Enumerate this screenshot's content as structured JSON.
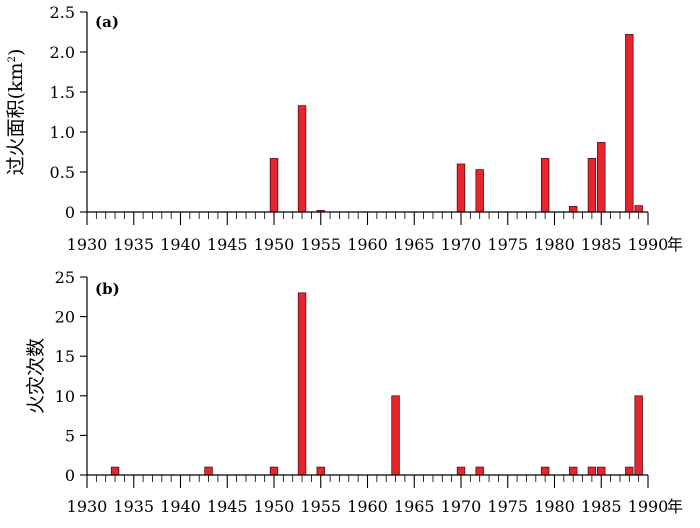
{
  "colors": {
    "bar_fill": "#e8252c",
    "bar_stroke": "#3a0a0a",
    "axis": "#000000"
  },
  "chart_data": [
    {
      "type": "bar",
      "panel_label": "(a)",
      "ylabel": "过火面积(km",
      "ylabel_sup": "2",
      "ylabel_tail": ")",
      "xlim": [
        1930,
        1990
      ],
      "ylim": [
        0,
        2.5
      ],
      "x_ticks": [
        1930,
        1935,
        1940,
        1945,
        1950,
        1955,
        1960,
        1965,
        1970,
        1975,
        1980,
        1985,
        1990
      ],
      "x_tick_labels": [
        "1930",
        "1935",
        "1940",
        "1945",
        "1950",
        "1955",
        "1960",
        "1965",
        "1970",
        "1975",
        "1980",
        "1985",
        "1990"
      ],
      "x_unit": "年",
      "y_ticks": [
        0,
        0.5,
        1.0,
        1.5,
        2.0,
        2.5
      ],
      "y_tick_labels": [
        "0",
        "0.5",
        "1.0",
        "1.5",
        "2.0",
        "2.5"
      ],
      "x": [
        1950,
        1953,
        1955,
        1970,
        1972,
        1979,
        1982,
        1984,
        1985,
        1988,
        1989
      ],
      "values": [
        0.67,
        1.33,
        0.02,
        0.6,
        0.53,
        0.67,
        0.07,
        0.67,
        0.87,
        2.22,
        0.08
      ]
    },
    {
      "type": "bar",
      "panel_label": "(b)",
      "ylabel": "火灾次数",
      "xlim": [
        1930,
        1990
      ],
      "ylim": [
        0,
        25
      ],
      "x_ticks": [
        1930,
        1935,
        1940,
        1945,
        1950,
        1955,
        1960,
        1965,
        1970,
        1975,
        1980,
        1985,
        1990
      ],
      "x_tick_labels": [
        "1930",
        "1935",
        "1940",
        "1945",
        "1950",
        "1955",
        "1960",
        "1965",
        "1970",
        "1975",
        "1980",
        "1985",
        "1990"
      ],
      "x_unit": "年",
      "y_ticks": [
        0,
        5,
        10,
        15,
        20,
        25
      ],
      "y_tick_labels": [
        "0",
        "5",
        "10",
        "15",
        "20",
        "25"
      ],
      "x": [
        1933,
        1943,
        1950,
        1953,
        1955,
        1963,
        1970,
        1972,
        1979,
        1982,
        1984,
        1985,
        1988,
        1989
      ],
      "values": [
        1,
        1,
        1,
        23,
        1,
        10,
        1,
        1,
        1,
        1,
        1,
        1,
        1,
        10
      ]
    }
  ]
}
